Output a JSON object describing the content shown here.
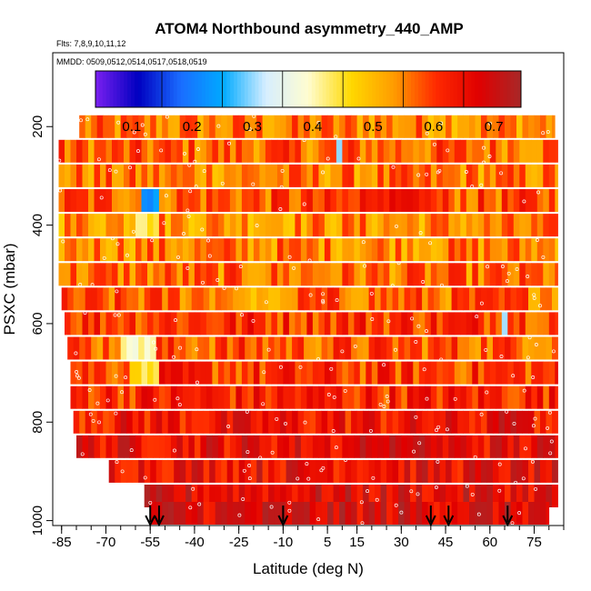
{
  "chart_data": {
    "type": "heatmap",
    "title": "ATOM4 Northbound asymmetry_440_AMP",
    "subtitle_flights": "Flts: 7,8,9,10,11,12",
    "subtitle_dates": "MMDD: 0509,0512,0514,0517,0518,0519",
    "xlabel": "Latitude (deg N)",
    "ylabel": "PSXC (mbar)",
    "xlim": [
      -88,
      85
    ],
    "ylim": [
      1010,
      50
    ],
    "x_ticks": [
      -85,
      -70,
      -55,
      -40,
      -25,
      -10,
      5,
      15,
      30,
      45,
      60,
      75
    ],
    "x_minor_step": 5,
    "y_ticks": [
      200,
      400,
      600,
      800,
      1000
    ],
    "colorbar": {
      "min": 0.04,
      "max": 0.745,
      "tick_values": [
        0.1,
        0.2,
        0.3,
        0.4,
        0.5,
        0.6,
        0.7
      ],
      "tick_labels": [
        "0.1",
        "0.2",
        "0.3",
        "0.4",
        "0.5",
        "0.6",
        "0.7"
      ],
      "colors": [
        "#7a20f0",
        "#0000c0",
        "#1a6cff",
        "#00aaff",
        "#d6eeff",
        "#fffdd0",
        "#ffd800",
        "#ff9d00",
        "#ff2a00",
        "#e00000",
        "#a82828"
      ]
    },
    "arrows_latitude": [
      -55,
      -52,
      -10,
      40,
      46,
      66
    ],
    "pressure_bins": [
      {
        "p": 200,
        "lat_min": -79,
        "lat_max": 82,
        "value": 0.55
      },
      {
        "p": 250,
        "lat_min": -86,
        "lat_max": 83,
        "value": 0.57
      },
      {
        "p": 300,
        "lat_min": -86,
        "lat_max": 83,
        "value": 0.55
      },
      {
        "p": 350,
        "lat_min": -86,
        "lat_max": 83,
        "value": 0.58
      },
      {
        "p": 400,
        "lat_min": -86,
        "lat_max": 83,
        "value": 0.54
      },
      {
        "p": 450,
        "lat_min": -86,
        "lat_max": 83,
        "value": 0.55
      },
      {
        "p": 500,
        "lat_min": -86,
        "lat_max": 83,
        "value": 0.56
      },
      {
        "p": 550,
        "lat_min": -85,
        "lat_max": 83,
        "value": 0.57
      },
      {
        "p": 600,
        "lat_min": -84,
        "lat_max": 83,
        "value": 0.61
      },
      {
        "p": 650,
        "lat_min": -83,
        "lat_max": 83,
        "value": 0.58
      },
      {
        "p": 700,
        "lat_min": -82,
        "lat_max": 83,
        "value": 0.6
      },
      {
        "p": 750,
        "lat_min": -82,
        "lat_max": 83,
        "value": 0.62
      },
      {
        "p": 800,
        "lat_min": -81,
        "lat_max": 83,
        "value": 0.64
      },
      {
        "p": 850,
        "lat_min": -80,
        "lat_max": 83,
        "value": 0.66
      },
      {
        "p": 900,
        "lat_min": -69,
        "lat_max": 83,
        "value": 0.66
      },
      {
        "p": 950,
        "lat_min": -57,
        "lat_max": 83,
        "value": 0.67
      },
      {
        "p": 985,
        "lat_min": -55,
        "lat_max": 80,
        "value": 0.68
      }
    ],
    "features": [
      {
        "p": 350,
        "lat_min": -58,
        "lat_max": -52,
        "value": 0.22
      },
      {
        "p": 400,
        "lat_min": -60,
        "lat_max": -53,
        "value": 0.44
      },
      {
        "p": 650,
        "lat_min": -65,
        "lat_max": -53,
        "value": 0.4
      },
      {
        "p": 700,
        "lat_min": -62,
        "lat_max": -53,
        "value": 0.45
      },
      {
        "p": 250,
        "lat_min": 8,
        "lat_max": 10,
        "value": 0.3
      },
      {
        "p": 600,
        "lat_min": 63,
        "lat_max": 65,
        "value": 0.33
      },
      {
        "p": 350,
        "lat_min": 15,
        "lat_max": 40,
        "value": 0.64
      },
      {
        "p": 850,
        "lat_min": 15,
        "lat_max": 40,
        "value": 0.7
      },
      {
        "p": 800,
        "lat_min": 60,
        "lat_max": 75,
        "value": 0.7
      },
      {
        "p": 550,
        "lat_min": -25,
        "lat_max": -8,
        "value": 0.5
      }
    ]
  }
}
